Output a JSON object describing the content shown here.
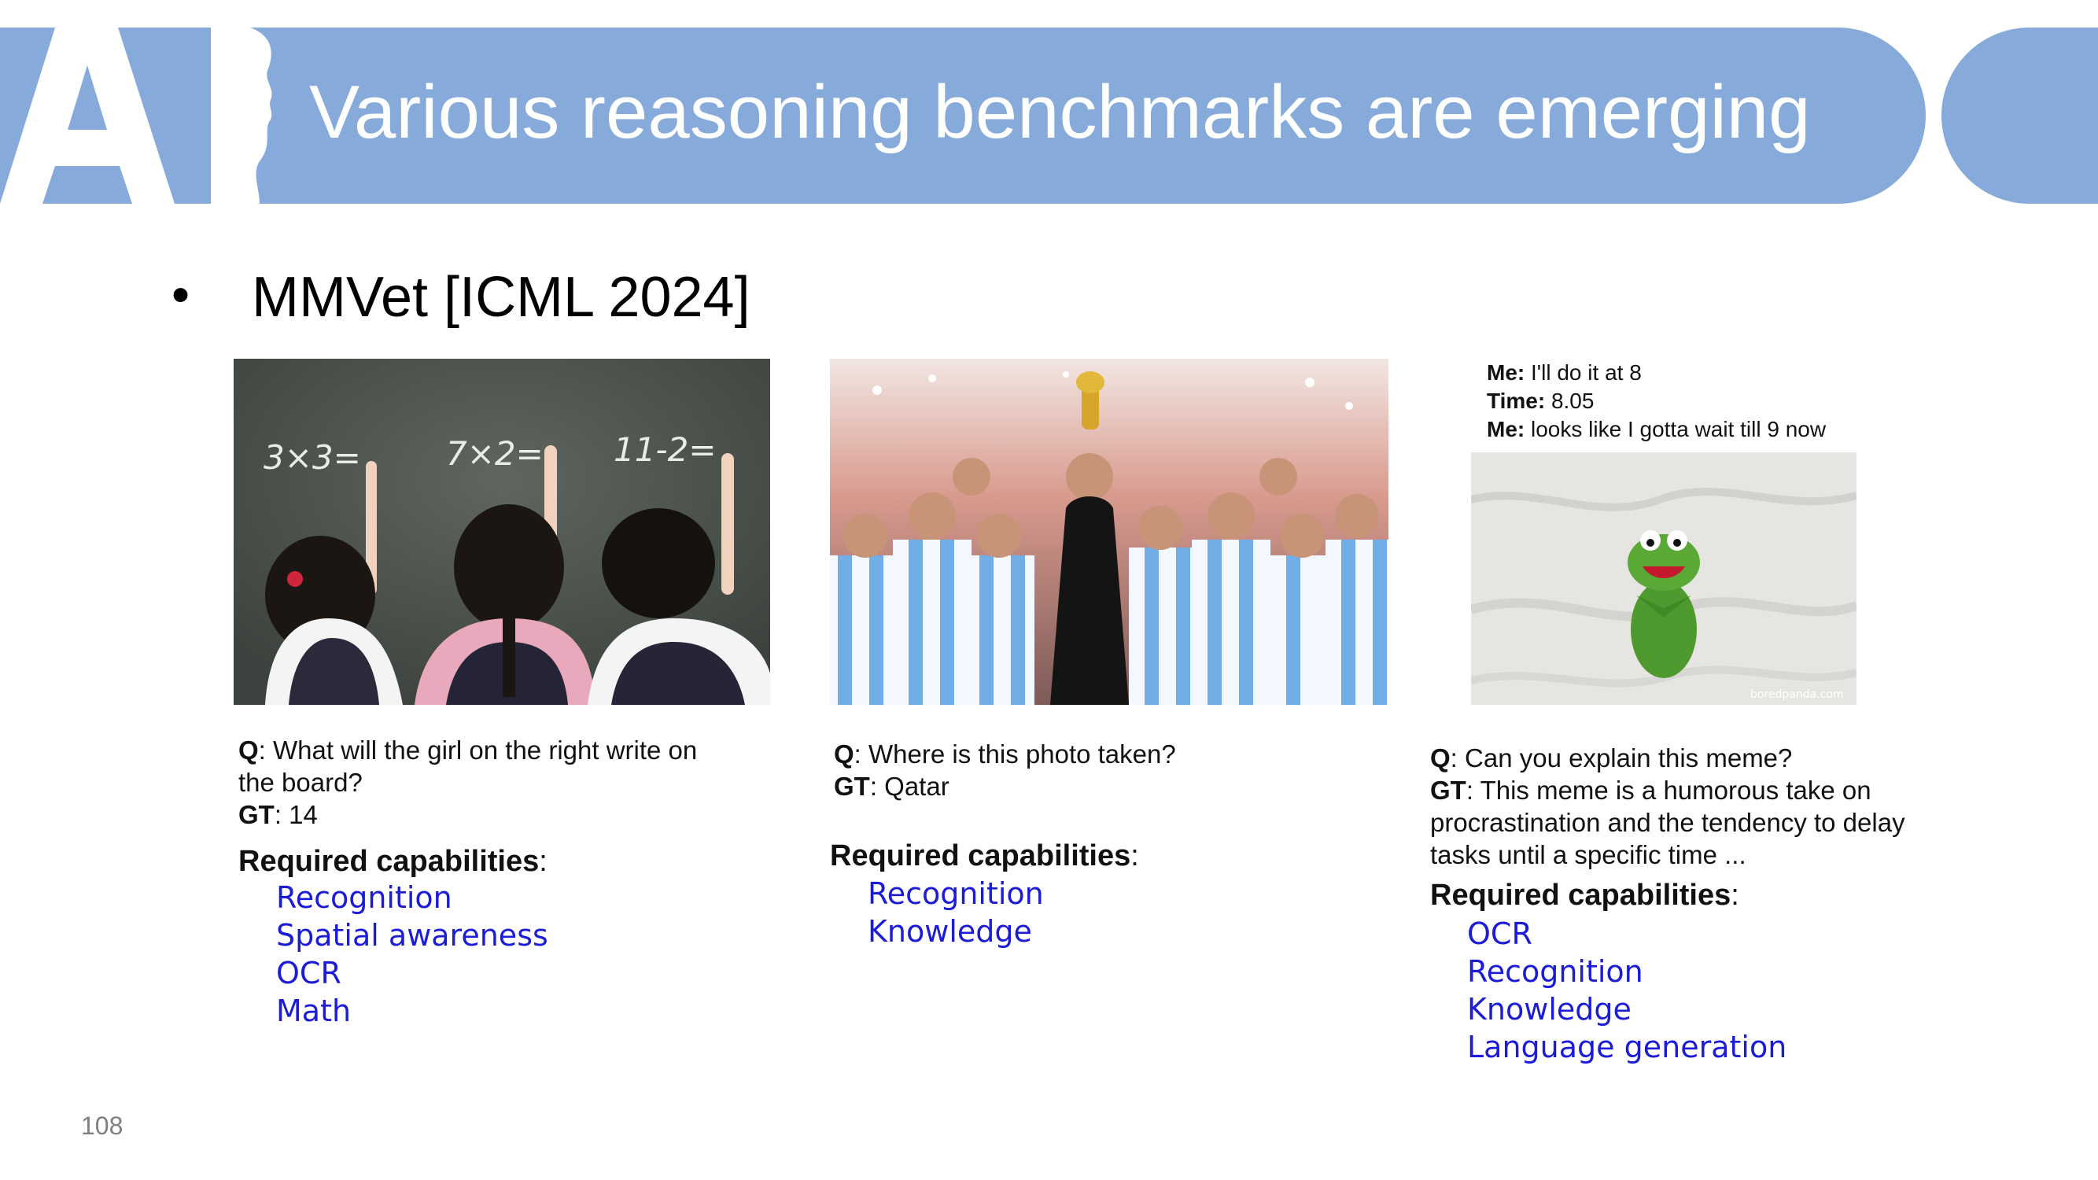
{
  "slide": {
    "title": "Various reasoning benchmarks are emerging",
    "bullet_marker": "•",
    "bullet": "MMVet [ICML 2024]",
    "page_number": "108",
    "logo_letters": "AI",
    "colors": {
      "banner": "#86abdb",
      "capability_text": "#1b1bd8"
    }
  },
  "examples": [
    {
      "image": "children-writing-math-on-chalkboard",
      "board_texts": [
        "3×3=",
        "7×2=",
        "11-2="
      ],
      "q_label": "Q",
      "question": ": What will the girl on the right write on the board?",
      "gt_label": "GT",
      "answer": ": 14",
      "required_label": "Required capabilities",
      "capabilities": [
        "Recognition",
        "Spatial awareness",
        "OCR",
        "Math"
      ]
    },
    {
      "image": "argentina-team-celebrating-with-trophy",
      "q_label": "Q",
      "question": ": Where is this photo taken?",
      "gt_label": "GT",
      "answer": ": Qatar",
      "required_label": "Required capabilities",
      "capabilities": [
        "Recognition",
        "Knowledge"
      ]
    },
    {
      "image": "kermit-frog-meme",
      "meme_lines": [
        {
          "label": "Me:",
          "text": " I'll do it at 8"
        },
        {
          "label": "Time:",
          "text": " 8.05"
        },
        {
          "label": "Me:",
          "text": " looks like I gotta wait till 9 now"
        }
      ],
      "watermark": "boredpanda.com",
      "q_label": "Q",
      "question": ": Can you explain this meme?",
      "gt_label": "GT",
      "answer": ": This meme is a humorous take on procrastination and the tendency to delay tasks until a specific time ...",
      "required_label": "Required capabilities",
      "capabilities": [
        "OCR",
        "Recognition",
        "Knowledge",
        "Language generation"
      ]
    }
  ]
}
